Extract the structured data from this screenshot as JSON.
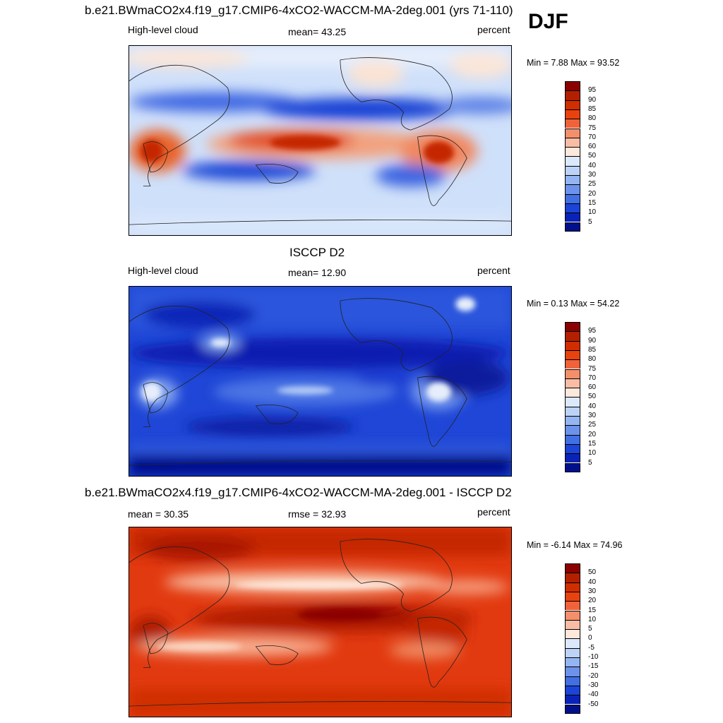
{
  "header": {
    "title1": "b.e21.BWmaCO2x4.f19_g17.CMIP6-4xCO2-WACCM-MA-2deg.001 (yrs 71-110)",
    "season": "DJF",
    "title2": "ISCCP D2",
    "title3": "b.e21.BWmaCO2x4.f19_g17.CMIP6-4xCO2-WACCM-MA-2deg.001 - ISCCP D2"
  },
  "panels": [
    {
      "left": "High-level cloud",
      "center": "mean=  43.25",
      "right": "percent",
      "minmax": "Min =   7.88 Max =  93.52"
    },
    {
      "left": "High-level cloud",
      "center": "mean=  12.90",
      "right": "percent",
      "minmax": "Min =   0.13 Max =  54.22"
    },
    {
      "left": "mean =  30.35",
      "center": "rmse =  32.93",
      "right": "percent",
      "minmax": "Min =  -6.14 Max =  74.96"
    }
  ],
  "colorbars": {
    "abs": {
      "labels": [
        "95",
        "90",
        "85",
        "80",
        "75",
        "70",
        "60",
        "50",
        "40",
        "30",
        "25",
        "20",
        "15",
        "10",
        "5"
      ],
      "colors": [
        "#8b0000",
        "#b22000",
        "#d02e00",
        "#e8420e",
        "#f0633a",
        "#f48f6c",
        "#f9bda5",
        "#fde8dc",
        "#dce9fb",
        "#bcd3f7",
        "#94b5f2",
        "#6d92ec",
        "#416fe4",
        "#1c44d6",
        "#0a23b7",
        "#00108c"
      ]
    },
    "diff": {
      "labels": [
        "50",
        "40",
        "30",
        "20",
        "15",
        "10",
        "5",
        "0",
        "-5",
        "-10",
        "-15",
        "-20",
        "-30",
        "-40",
        "-50"
      ],
      "colors": [
        "#8b0000",
        "#b22000",
        "#d02e00",
        "#e8420e",
        "#f0633a",
        "#f48f6c",
        "#f9bda5",
        "#fde8dc",
        "#dce9fb",
        "#bcd3f7",
        "#94b5f2",
        "#6d92ec",
        "#416fe4",
        "#1c44d6",
        "#0a23b7",
        "#00108c"
      ]
    }
  },
  "chart_data": [
    {
      "type": "heatmap",
      "title": "b.e21.BWmaCO2x4.f19_g17.CMIP6-4xCO2-WACCM-MA-2deg.001 (yrs 71-110)",
      "variable": "High-level cloud",
      "units": "percent",
      "mean": 43.25,
      "min": 7.88,
      "max": 93.52,
      "contour_levels": [
        5,
        10,
        15,
        20,
        25,
        30,
        40,
        50,
        60,
        70,
        75,
        80,
        85,
        90,
        95
      ]
    },
    {
      "type": "heatmap",
      "title": "ISCCP D2",
      "variable": "High-level cloud",
      "units": "percent",
      "mean": 12.9,
      "min": 0.13,
      "max": 54.22,
      "contour_levels": [
        5,
        10,
        15,
        20,
        25,
        30,
        40,
        50,
        60,
        70,
        75,
        80,
        85,
        90,
        95
      ]
    },
    {
      "type": "heatmap",
      "title": "b.e21.BWmaCO2x4.f19_g17.CMIP6-4xCO2-WACCM-MA-2deg.001 - ISCCP D2",
      "units": "percent",
      "mean": 30.35,
      "rmse": 32.93,
      "min": -6.14,
      "max": 74.96,
      "contour_levels": [
        -50,
        -40,
        -30,
        -20,
        -15,
        -10,
        -5,
        0,
        5,
        10,
        15,
        20,
        30,
        40,
        50
      ]
    }
  ]
}
